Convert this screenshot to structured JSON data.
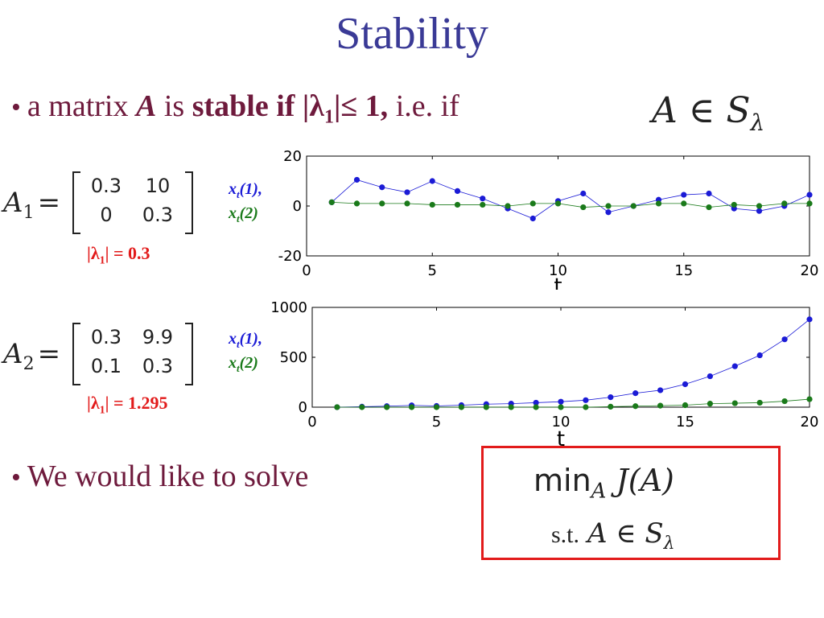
{
  "slide": {
    "title": "Stability",
    "bullet1": {
      "prefix": "a matrix",
      "var": "A",
      "is": "is",
      "stable": "stable if",
      "condition": "|λ",
      "condition_sub": "1",
      "condition_rest": "|≤ 1,",
      "ie": "i.e. if",
      "math": "A ∈ S",
      "math_sub": "λ"
    },
    "bullet2": "We would like to solve",
    "matrix1": {
      "label": "A",
      "label_sub": "1",
      "eq": "=",
      "rows": [
        [
          "0.3",
          "10"
        ],
        [
          "0",
          "0.3"
        ]
      ],
      "eig_label": "|λ",
      "eig_sub": "1",
      "eig_value": "| = 0.3"
    },
    "matrix2": {
      "label": "A",
      "label_sub": "2",
      "eq": "=",
      "rows": [
        [
          "0.3",
          "9.9"
        ],
        [
          "0.1",
          "0.3"
        ]
      ],
      "eig_label": "|λ",
      "eig_sub": "1",
      "eig_value": "| = 1.295"
    },
    "legend": {
      "x1": "x",
      "x1_sub": "t",
      "x1_rest": "(1),",
      "x2": "x",
      "x2_sub": "t",
      "x2_rest": "(2)"
    },
    "optimization": {
      "min": "min",
      "min_sub": "A",
      "objective": "J(A)",
      "st": "s.t.",
      "constraint": "A ∈ S",
      "constraint_sub": "λ"
    }
  },
  "chart_data": [
    {
      "type": "scatter",
      "xlabel": "t",
      "ylabel": "",
      "xlim": [
        0,
        20
      ],
      "ylim": [
        -20,
        20
      ],
      "xticks": [
        "0",
        "5",
        "10",
        "15",
        "20"
      ],
      "yticks": [
        "-20",
        "0",
        "20"
      ],
      "x": [
        1,
        2,
        3,
        4,
        5,
        6,
        7,
        8,
        9,
        10,
        11,
        12,
        13,
        14,
        15,
        16,
        17,
        18,
        19,
        20
      ],
      "series": [
        {
          "color": "#1b1bd6",
          "values": [
            1.5,
            10.5,
            7.5,
            5.5,
            10,
            6,
            3,
            -1,
            -5,
            2,
            5,
            -2.5,
            0,
            2.5,
            4.5,
            5,
            -1,
            -2,
            0,
            4.5
          ]
        },
        {
          "color": "#1a7a1a",
          "values": [
            1.5,
            1,
            1,
            1,
            0.5,
            0.5,
            0.5,
            0,
            1,
            1,
            -0.5,
            0,
            0,
            1,
            1,
            -0.5,
            0.5,
            0,
            1,
            1
          ]
        }
      ]
    },
    {
      "type": "scatter",
      "xlabel": "t",
      "ylabel": "",
      "xlim": [
        0,
        20
      ],
      "ylim": [
        0,
        1000
      ],
      "xticks": [
        "0",
        "5",
        "10",
        "15",
        "20"
      ],
      "yticks": [
        "0",
        "500",
        "1000"
      ],
      "x": [
        1,
        2,
        3,
        4,
        5,
        6,
        7,
        8,
        9,
        10,
        11,
        12,
        13,
        14,
        15,
        16,
        17,
        18,
        19,
        20
      ],
      "series": [
        {
          "color": "#1b1bd6",
          "values": [
            0,
            5,
            10,
            18,
            12,
            20,
            30,
            35,
            45,
            55,
            70,
            100,
            140,
            170,
            230,
            310,
            410,
            520,
            680,
            880
          ]
        },
        {
          "color": "#1a7a1a",
          "values": [
            0,
            0,
            0,
            0,
            0,
            0,
            0,
            0,
            0,
            0,
            0,
            5,
            10,
            15,
            20,
            35,
            40,
            45,
            60,
            80
          ]
        }
      ]
    }
  ]
}
